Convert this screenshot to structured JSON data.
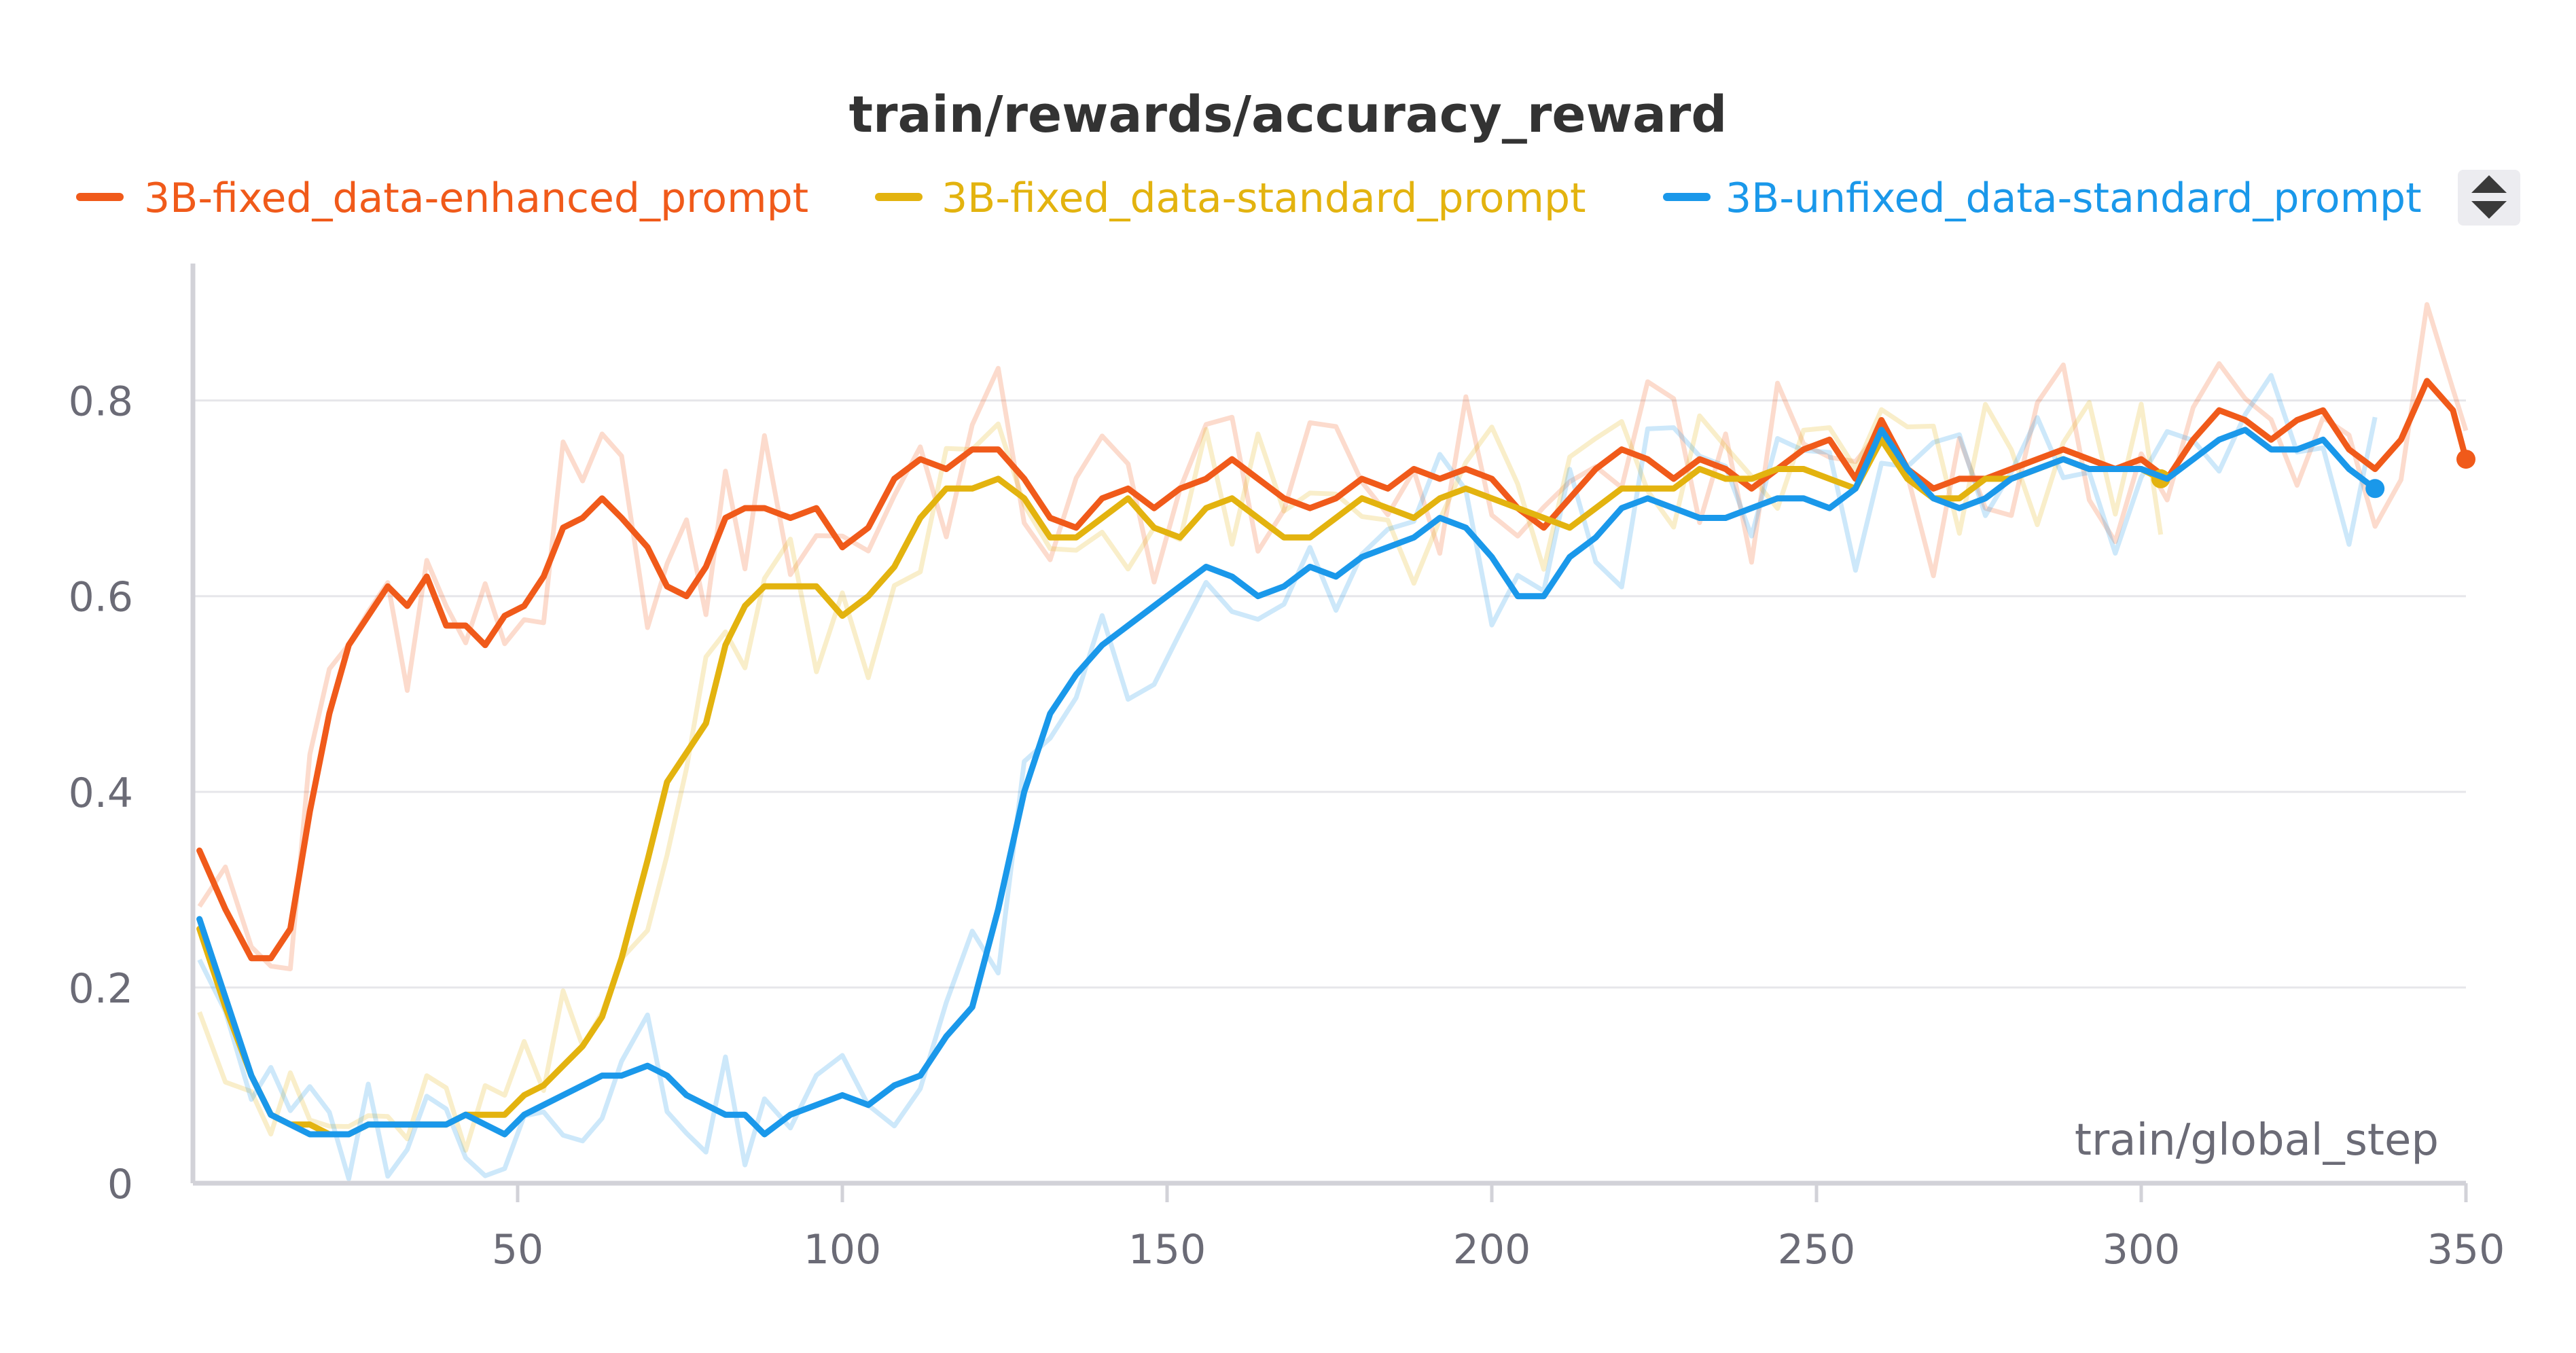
{
  "chart_data": {
    "type": "line",
    "title": "train/rewards/accuracy_reward",
    "xlabel": "train/global_step",
    "ylabel": "",
    "xlim": [
      0,
      350
    ],
    "ylim": [
      0,
      0.94
    ],
    "x_ticks": [
      "50",
      "100",
      "150",
      "200",
      "250",
      "300",
      "350"
    ],
    "x_tick_values": [
      50,
      100,
      150,
      200,
      250,
      300,
      350
    ],
    "y_ticks": [
      "0",
      "0.2",
      "0.4",
      "0.6",
      "0.8"
    ],
    "y_tick_values": [
      0,
      0.2,
      0.4,
      0.6,
      0.8
    ],
    "grid": true,
    "legend_position": "top",
    "series": [
      {
        "name": "3B-fixed_data-enhanced_prompt",
        "color": "#f05a1a",
        "x": [
          1,
          5,
          9,
          12,
          15,
          18,
          21,
          24,
          27,
          30,
          33,
          36,
          39,
          42,
          45,
          48,
          51,
          54,
          57,
          60,
          63,
          66,
          70,
          73,
          76,
          79,
          82,
          85,
          88,
          92,
          96,
          100,
          104,
          108,
          112,
          116,
          120,
          124,
          128,
          132,
          136,
          140,
          144,
          148,
          152,
          156,
          160,
          164,
          168,
          172,
          176,
          180,
          184,
          188,
          192,
          196,
          200,
          204,
          208,
          212,
          216,
          220,
          224,
          228,
          232,
          236,
          240,
          244,
          248,
          252,
          256,
          260,
          264,
          268,
          272,
          276,
          280,
          284,
          288,
          292,
          296,
          300,
          304,
          308,
          312,
          316,
          320,
          324,
          328,
          332,
          336,
          340,
          344,
          348,
          350
        ],
        "y": [
          0.34,
          0.28,
          0.23,
          0.23,
          0.26,
          0.38,
          0.48,
          0.55,
          0.58,
          0.61,
          0.59,
          0.62,
          0.57,
          0.57,
          0.55,
          0.58,
          0.59,
          0.62,
          0.67,
          0.68,
          0.7,
          0.68,
          0.65,
          0.61,
          0.6,
          0.63,
          0.68,
          0.69,
          0.69,
          0.68,
          0.69,
          0.65,
          0.67,
          0.72,
          0.74,
          0.73,
          0.75,
          0.75,
          0.72,
          0.68,
          0.67,
          0.7,
          0.71,
          0.69,
          0.71,
          0.72,
          0.74,
          0.72,
          0.7,
          0.69,
          0.7,
          0.72,
          0.71,
          0.73,
          0.72,
          0.73,
          0.72,
          0.69,
          0.67,
          0.7,
          0.73,
          0.75,
          0.74,
          0.72,
          0.74,
          0.73,
          0.71,
          0.73,
          0.75,
          0.76,
          0.72,
          0.78,
          0.73,
          0.71,
          0.72,
          0.72,
          0.73,
          0.74,
          0.75,
          0.74,
          0.73,
          0.74,
          0.72,
          0.76,
          0.79,
          0.78,
          0.76,
          0.78,
          0.79,
          0.75,
          0.73,
          0.76,
          0.82,
          0.79,
          0.74
        ]
      },
      {
        "name": "3B-fixed_data-standard_prompt",
        "color": "#e3b30f",
        "x": [
          1,
          5,
          9,
          12,
          15,
          18,
          21,
          24,
          27,
          30,
          33,
          36,
          39,
          42,
          45,
          48,
          51,
          54,
          57,
          60,
          63,
          66,
          70,
          73,
          76,
          79,
          82,
          85,
          88,
          92,
          96,
          100,
          104,
          108,
          112,
          116,
          120,
          124,
          128,
          132,
          136,
          140,
          144,
          148,
          152,
          156,
          160,
          164,
          168,
          172,
          176,
          180,
          184,
          188,
          192,
          196,
          200,
          204,
          208,
          212,
          216,
          220,
          224,
          228,
          232,
          236,
          240,
          244,
          248,
          252,
          256,
          260,
          264,
          268,
          272,
          276,
          280,
          284,
          288,
          292,
          296,
          300,
          303
        ],
        "y": [
          0.26,
          0.18,
          0.11,
          0.07,
          0.06,
          0.06,
          0.05,
          0.05,
          0.06,
          0.06,
          0.06,
          0.06,
          0.06,
          0.07,
          0.07,
          0.07,
          0.09,
          0.1,
          0.12,
          0.14,
          0.17,
          0.23,
          0.33,
          0.41,
          0.44,
          0.47,
          0.55,
          0.59,
          0.61,
          0.61,
          0.61,
          0.58,
          0.6,
          0.63,
          0.68,
          0.71,
          0.71,
          0.72,
          0.7,
          0.66,
          0.66,
          0.68,
          0.7,
          0.67,
          0.66,
          0.69,
          0.7,
          0.68,
          0.66,
          0.66,
          0.68,
          0.7,
          0.69,
          0.68,
          0.7,
          0.71,
          0.7,
          0.69,
          0.68,
          0.67,
          0.69,
          0.71,
          0.71,
          0.71,
          0.73,
          0.72,
          0.72,
          0.73,
          0.73,
          0.72,
          0.71,
          0.76,
          0.72,
          0.7,
          0.7,
          0.72,
          0.72,
          0.73,
          0.74,
          0.73,
          0.73,
          0.73,
          0.72
        ]
      },
      {
        "name": "3B-unfixed_data-standard_prompt",
        "color": "#1a98ea",
        "x": [
          1,
          5,
          9,
          12,
          15,
          18,
          21,
          24,
          27,
          30,
          33,
          36,
          39,
          42,
          45,
          48,
          51,
          54,
          57,
          60,
          63,
          66,
          70,
          73,
          76,
          79,
          82,
          85,
          88,
          92,
          96,
          100,
          104,
          108,
          112,
          116,
          120,
          124,
          128,
          132,
          136,
          140,
          144,
          148,
          152,
          156,
          160,
          164,
          168,
          172,
          176,
          180,
          184,
          188,
          192,
          196,
          200,
          204,
          208,
          212,
          216,
          220,
          224,
          228,
          232,
          236,
          240,
          244,
          248,
          252,
          256,
          260,
          264,
          268,
          272,
          276,
          280,
          284,
          288,
          292,
          296,
          300,
          304,
          308,
          312,
          316,
          320,
          324,
          328,
          332,
          336
        ],
        "y": [
          0.27,
          0.19,
          0.11,
          0.07,
          0.06,
          0.05,
          0.05,
          0.05,
          0.06,
          0.06,
          0.06,
          0.06,
          0.06,
          0.07,
          0.06,
          0.05,
          0.07,
          0.08,
          0.09,
          0.1,
          0.11,
          0.11,
          0.12,
          0.11,
          0.09,
          0.08,
          0.07,
          0.07,
          0.05,
          0.07,
          0.08,
          0.09,
          0.08,
          0.1,
          0.11,
          0.15,
          0.18,
          0.28,
          0.4,
          0.48,
          0.52,
          0.55,
          0.57,
          0.59,
          0.61,
          0.63,
          0.62,
          0.6,
          0.61,
          0.63,
          0.62,
          0.64,
          0.65,
          0.66,
          0.68,
          0.67,
          0.64,
          0.6,
          0.6,
          0.64,
          0.66,
          0.69,
          0.7,
          0.69,
          0.68,
          0.68,
          0.69,
          0.7,
          0.7,
          0.69,
          0.71,
          0.77,
          0.73,
          0.7,
          0.69,
          0.7,
          0.72,
          0.73,
          0.74,
          0.73,
          0.73,
          0.73,
          0.72,
          0.74,
          0.76,
          0.77,
          0.75,
          0.75,
          0.76,
          0.73,
          0.71
        ]
      }
    ]
  }
}
